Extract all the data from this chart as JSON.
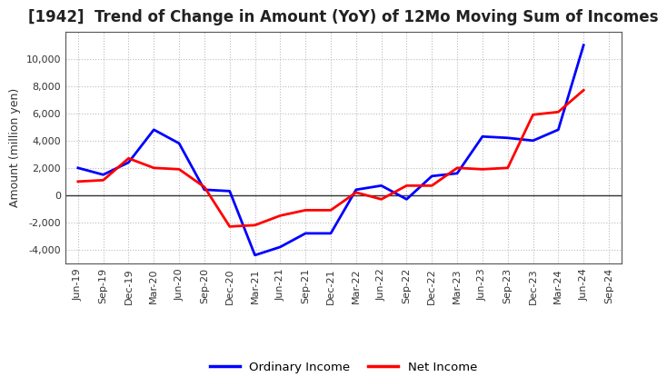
{
  "title": "[1942]  Trend of Change in Amount (YoY) of 12Mo Moving Sum of Incomes",
  "ylabel": "Amount (million yen)",
  "x_labels": [
    "Jun-19",
    "Sep-19",
    "Dec-19",
    "Mar-20",
    "Jun-20",
    "Sep-20",
    "Dec-20",
    "Mar-21",
    "Jun-21",
    "Sep-21",
    "Dec-21",
    "Mar-22",
    "Jun-22",
    "Sep-22",
    "Dec-22",
    "Mar-23",
    "Jun-23",
    "Sep-23",
    "Dec-23",
    "Mar-24",
    "Jun-24",
    "Sep-24"
  ],
  "ordinary_income": [
    2000,
    1500,
    2400,
    4800,
    3800,
    400,
    300,
    -4400,
    -3800,
    -2800,
    -2800,
    400,
    700,
    -300,
    1400,
    1600,
    4300,
    4200,
    4000,
    4800,
    11000,
    null
  ],
  "net_income": [
    1000,
    1100,
    2700,
    2000,
    1900,
    600,
    -2300,
    -2200,
    -1500,
    -1100,
    -1100,
    200,
    -300,
    700,
    700,
    2000,
    1900,
    2000,
    5900,
    6100,
    7700,
    null
  ],
  "ordinary_income_color": "#0000FF",
  "net_income_color": "#FF0000",
  "background_color": "#FFFFFF",
  "plot_bg_color": "#FFFFFF",
  "grid_color": "#BBBBBB",
  "ylim": [
    -5000,
    12000
  ],
  "yticks": [
    -4000,
    -2000,
    0,
    2000,
    4000,
    6000,
    8000,
    10000
  ],
  "legend_labels": [
    "Ordinary Income",
    "Net Income"
  ],
  "title_fontsize": 12,
  "axis_label_fontsize": 9,
  "tick_fontsize": 8,
  "legend_fontsize": 9.5,
  "line_width": 2.0
}
